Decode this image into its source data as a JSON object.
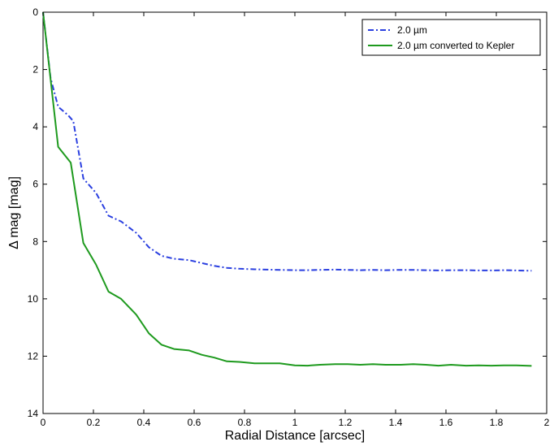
{
  "chart_data": {
    "type": "line",
    "title": "",
    "xlabel": "Radial Distance [arcsec]",
    "ylabel": "Δ mag [mag]",
    "xlim": [
      0,
      2
    ],
    "ylim": [
      0,
      14
    ],
    "y_inverted": true,
    "xticks": [
      "0",
      "0.2",
      "0.4",
      "0.6",
      "0.8",
      "1",
      "1.2",
      "1.4",
      "1.6",
      "1.8",
      "2"
    ],
    "yticks": [
      "0",
      "2",
      "4",
      "6",
      "8",
      "10",
      "12",
      "14"
    ],
    "grid": false,
    "legend_position": "top-right",
    "series": [
      {
        "name": "2.0 µm",
        "color": "#2a3fe0",
        "style": "dash-dot",
        "x": [
          0.0,
          0.03,
          0.06,
          0.1,
          0.12,
          0.16,
          0.21,
          0.26,
          0.31,
          0.37,
          0.42,
          0.47,
          0.52,
          0.58,
          0.63,
          0.68,
          0.73,
          0.78,
          0.84,
          0.89,
          0.94,
          1.0,
          1.05,
          1.1,
          1.16,
          1.21,
          1.26,
          1.31,
          1.36,
          1.42,
          1.47,
          1.52,
          1.57,
          1.62,
          1.68,
          1.73,
          1.78,
          1.83,
          1.88,
          1.94
        ],
        "y": [
          0.0,
          2.3,
          3.3,
          3.6,
          3.8,
          5.8,
          6.3,
          7.1,
          7.3,
          7.7,
          8.2,
          8.5,
          8.6,
          8.65,
          8.75,
          8.85,
          8.92,
          8.95,
          8.97,
          8.98,
          8.99,
          9.0,
          9.0,
          8.99,
          8.98,
          8.99,
          9.0,
          8.99,
          9.0,
          8.99,
          8.99,
          9.0,
          9.01,
          9.0,
          9.0,
          9.01,
          9.01,
          9.0,
          9.01,
          9.02
        ]
      },
      {
        "name": "2.0 µm converted to Kepler",
        "color": "#1e9a1e",
        "style": "solid",
        "x": [
          0.0,
          0.06,
          0.11,
          0.16,
          0.21,
          0.26,
          0.31,
          0.37,
          0.42,
          0.47,
          0.52,
          0.58,
          0.63,
          0.68,
          0.73,
          0.78,
          0.84,
          0.89,
          0.94,
          1.0,
          1.05,
          1.1,
          1.16,
          1.21,
          1.26,
          1.31,
          1.36,
          1.42,
          1.47,
          1.52,
          1.57,
          1.62,
          1.68,
          1.73,
          1.78,
          1.83,
          1.88,
          1.94
        ],
        "y": [
          0.0,
          4.7,
          5.25,
          8.05,
          8.8,
          9.75,
          10.0,
          10.55,
          11.2,
          11.6,
          11.75,
          11.8,
          11.95,
          12.05,
          12.18,
          12.2,
          12.25,
          12.25,
          12.25,
          12.32,
          12.33,
          12.3,
          12.28,
          12.28,
          12.3,
          12.28,
          12.3,
          12.3,
          12.28,
          12.3,
          12.33,
          12.3,
          12.33,
          12.32,
          12.33,
          12.32,
          12.32,
          12.34
        ]
      }
    ]
  }
}
